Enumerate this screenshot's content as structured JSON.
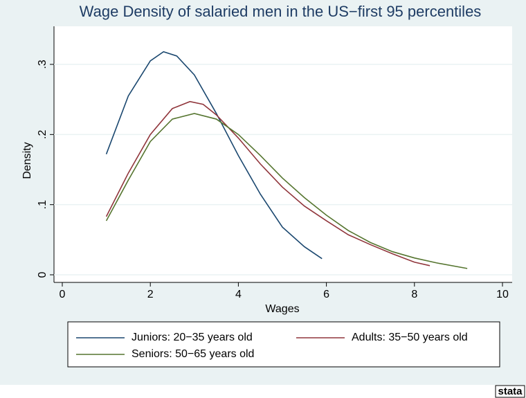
{
  "chart_data": {
    "type": "line",
    "title": "Wage Density of salaried men in the US−first 95 percentiles",
    "x_label": "Wages",
    "y_label": "Density",
    "xlim": [
      0,
      10
    ],
    "xticks": [
      0,
      2,
      4,
      6,
      8,
      10
    ],
    "ylim": [
      0,
      0.3
    ],
    "yticks": [
      0,
      {
        "value": 0.1,
        "label": ".1"
      },
      {
        "value": 0.2,
        "label": ".2"
      },
      {
        "value": 0.3,
        "label": ".3"
      }
    ],
    "grid": true,
    "series": [
      {
        "name": "Juniors: 20−35 years old",
        "color": "#1a476f",
        "x": [
          1,
          1.5,
          2,
          2.3,
          2.6,
          3,
          3.5,
          4,
          4.5,
          5,
          5.5,
          5.9
        ],
        "values": [
          0.172,
          0.255,
          0.305,
          0.318,
          0.312,
          0.285,
          0.23,
          0.17,
          0.115,
          0.068,
          0.04,
          0.023
        ]
      },
      {
        "name": "Adults: 35−50 years old",
        "color": "#90353b",
        "x": [
          1,
          1.5,
          2,
          2.5,
          2.9,
          3.2,
          3.5,
          4,
          4.5,
          5,
          5.5,
          6,
          6.5,
          7,
          7.5,
          8,
          8.35
        ],
        "values": [
          0.083,
          0.145,
          0.2,
          0.237,
          0.247,
          0.243,
          0.228,
          0.195,
          0.158,
          0.125,
          0.098,
          0.077,
          0.057,
          0.043,
          0.03,
          0.018,
          0.013
        ]
      },
      {
        "name": "Seniors: 50−65 years old",
        "color": "#55752f",
        "x": [
          1,
          1.5,
          2,
          2.5,
          3,
          3.5,
          4,
          4.5,
          5,
          5.5,
          6,
          6.5,
          7,
          7.5,
          8,
          8.5,
          9.2
        ],
        "values": [
          0.077,
          0.135,
          0.19,
          0.222,
          0.23,
          0.222,
          0.2,
          0.17,
          0.138,
          0.11,
          0.085,
          0.063,
          0.046,
          0.033,
          0.024,
          0.017,
          0.009
        ]
      }
    ],
    "watermark": "stata"
  }
}
